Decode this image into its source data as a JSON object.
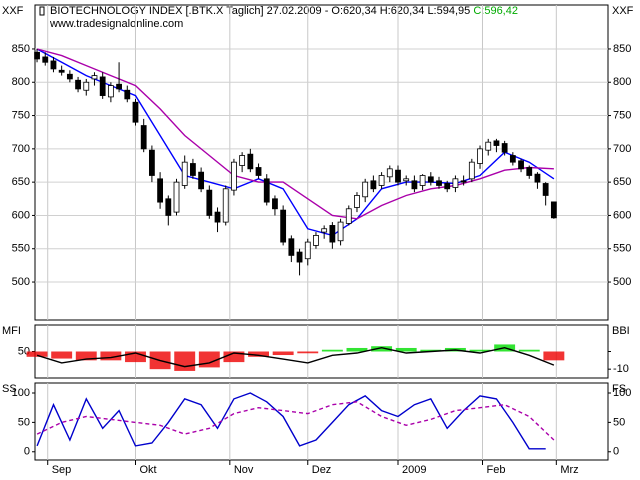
{
  "chart_data": [
    {
      "type": "candlestick",
      "title": "BIOTECHNOLOGY INDEX [.BTK.X  Taglich] 27.02.2009 - O:620,34 H:620,34 L:594,95",
      "close_label": "C:596,42",
      "subtitle": "www.tradesignalonline.com",
      "label_left": "XXF",
      "label_right": "XXF",
      "up_color": "#ffffff",
      "down_color": "#000000",
      "close_label_color": "#00aa00",
      "xlim": [
        -0.25,
        69.6
      ],
      "ylim": [
        443,
        916
      ],
      "yticks": [
        500,
        550,
        600,
        650,
        700,
        750,
        800,
        850
      ],
      "grid": true,
      "x": [
        0,
        1,
        2,
        3,
        4,
        5,
        6,
        7,
        8,
        9,
        10,
        11,
        12,
        13,
        14,
        15,
        16,
        17,
        18,
        19,
        20,
        21,
        22,
        23,
        24,
        25,
        26,
        27,
        28,
        29,
        30,
        31,
        32,
        33,
        34,
        35,
        36,
        37,
        38,
        39,
        40,
        41,
        42,
        43,
        44,
        45,
        46,
        47,
        48,
        49,
        50,
        51,
        52,
        53,
        54,
        55,
        56,
        57,
        58,
        59,
        60,
        61,
        62,
        63
      ],
      "open": [
        845,
        838,
        832,
        818,
        812,
        803,
        788,
        805,
        808,
        778,
        797,
        788,
        770,
        735,
        698,
        655,
        625,
        605,
        645,
        678,
        665,
        638,
        605,
        590,
        638,
        675,
        692,
        672,
        655,
        625,
        608,
        565,
        545,
        535,
        555,
        575,
        585,
        562,
        588,
        612,
        628,
        652,
        645,
        658,
        668,
        652,
        652,
        645,
        658,
        652,
        648,
        642,
        652,
        655,
        678,
        698,
        712,
        708,
        690,
        682,
        672,
        662,
        648,
        620.34
      ],
      "high": [
        850,
        845,
        838,
        825,
        818,
        808,
        805,
        815,
        815,
        800,
        830,
        795,
        775,
        745,
        705,
        665,
        630,
        655,
        690,
        685,
        672,
        645,
        612,
        645,
        685,
        695,
        700,
        678,
        662,
        630,
        615,
        570,
        550,
        565,
        575,
        585,
        590,
        595,
        615,
        635,
        655,
        660,
        665,
        675,
        675,
        660,
        660,
        662,
        665,
        658,
        652,
        660,
        660,
        685,
        705,
        715,
        715,
        712,
        695,
        685,
        675,
        665,
        650,
        620.34
      ],
      "low": [
        830,
        825,
        815,
        810,
        800,
        785,
        780,
        795,
        775,
        770,
        785,
        770,
        735,
        695,
        650,
        610,
        585,
        600,
        640,
        655,
        635,
        595,
        575,
        585,
        630,
        665,
        665,
        655,
        615,
        600,
        555,
        530,
        510,
        525,
        550,
        565,
        550,
        555,
        585,
        605,
        620,
        635,
        640,
        650,
        645,
        645,
        635,
        638,
        645,
        640,
        635,
        635,
        645,
        650,
        670,
        690,
        695,
        690,
        675,
        665,
        655,
        640,
        615,
        594.95
      ],
      "close": [
        835,
        830,
        820,
        815,
        805,
        790,
        800,
        810,
        780,
        795,
        790,
        775,
        740,
        700,
        660,
        620,
        600,
        650,
        680,
        660,
        640,
        600,
        590,
        640,
        680,
        690,
        670,
        660,
        620,
        610,
        560,
        540,
        530,
        560,
        570,
        580,
        560,
        590,
        610,
        630,
        650,
        640,
        660,
        670,
        650,
        655,
        640,
        660,
        650,
        645,
        640,
        655,
        650,
        680,
        700,
        710,
        705,
        695,
        680,
        670,
        660,
        650,
        630,
        596.42
      ],
      "series": [
        {
          "color": "#0000ff",
          "x": [
            0,
            3,
            6,
            9,
            12,
            15,
            18,
            21,
            24,
            27,
            30,
            33,
            36,
            39,
            42,
            45,
            48,
            51,
            54,
            57,
            60,
            63
          ],
          "values": [
            850,
            830,
            810,
            795,
            780,
            720,
            660,
            650,
            640,
            655,
            640,
            580,
            570,
            595,
            640,
            650,
            650,
            648,
            660,
            695,
            680,
            655
          ]
        },
        {
          "color": "#aa00aa",
          "x": [
            0,
            3,
            6,
            9,
            12,
            15,
            18,
            21,
            24,
            27,
            30,
            33,
            36,
            39,
            42,
            45,
            48,
            51,
            54,
            57,
            60,
            63
          ],
          "values": [
            850,
            840,
            825,
            810,
            795,
            760,
            720,
            690,
            660,
            650,
            650,
            625,
            600,
            595,
            615,
            630,
            640,
            645,
            655,
            668,
            672,
            670
          ]
        }
      ]
    },
    {
      "type": "bar",
      "label_left": "MFI",
      "label_right": "BBI",
      "xlim": [
        -0.25,
        69.6
      ],
      "ylim": [
        15,
        85
      ],
      "yticks": [
        50
      ],
      "y2lim": [
        -15,
        15
      ],
      "y2ticks": [
        -10
      ],
      "up_color": "#00dd00",
      "down_color": "#ee0000",
      "series": [
        {
          "type": "bar",
          "axis": "y2",
          "x": [
            0,
            3,
            6,
            9,
            12,
            15,
            18,
            21,
            24,
            27,
            30,
            33,
            36,
            39,
            42,
            45,
            48,
            51,
            54,
            57,
            60,
            63
          ],
          "values": [
            -3,
            -4,
            -5,
            -5,
            -6,
            -10,
            -11,
            -9,
            -6,
            -3,
            -2,
            -1,
            1,
            2,
            3,
            2,
            1,
            2,
            1,
            4,
            1,
            -5
          ]
        },
        {
          "type": "line",
          "color": "#000000",
          "x": [
            0,
            3,
            6,
            9,
            12,
            15,
            18,
            21,
            24,
            27,
            30,
            33,
            36,
            39,
            42,
            45,
            48,
            51,
            54,
            57,
            60,
            63
          ],
          "values": [
            45,
            35,
            40,
            42,
            48,
            38,
            30,
            35,
            48,
            45,
            40,
            35,
            45,
            48,
            55,
            48,
            50,
            52,
            48,
            55,
            45,
            32
          ]
        }
      ]
    },
    {
      "type": "line",
      "label_left": "SS",
      "label_right": "FS",
      "xlim": [
        -0.25,
        69.6
      ],
      "ylim": [
        -14,
        117
      ],
      "yticks": [
        0,
        50,
        100
      ],
      "xticks": [
        {
          "value": 1.3,
          "label": "Sep"
        },
        {
          "value": 12,
          "label": "Okt"
        },
        {
          "value": 23.5,
          "label": "Nov"
        },
        {
          "value": 33,
          "label": "Dez"
        },
        {
          "value": 44,
          "label": "2009"
        },
        {
          "value": 54.3,
          "label": "Feb"
        },
        {
          "value": 63.3,
          "label": "Mrz"
        }
      ],
      "series": [
        {
          "color": "#0000cc",
          "dashed": false,
          "x": [
            0,
            2,
            4,
            6,
            8,
            10,
            12,
            14,
            16,
            18,
            20,
            22,
            24,
            26,
            28,
            30,
            32,
            34,
            36,
            38,
            40,
            42,
            44,
            46,
            48,
            50,
            52,
            54,
            56,
            58,
            60,
            62
          ],
          "values": [
            10,
            80,
            20,
            90,
            40,
            70,
            10,
            15,
            50,
            90,
            80,
            40,
            90,
            100,
            85,
            60,
            10,
            20,
            50,
            80,
            95,
            70,
            60,
            80,
            90,
            40,
            70,
            95,
            90,
            50,
            5,
            5
          ]
        },
        {
          "color": "#aa00aa",
          "dashed": true,
          "x": [
            0,
            3,
            6,
            9,
            12,
            15,
            18,
            21,
            24,
            27,
            30,
            33,
            36,
            39,
            42,
            45,
            48,
            51,
            54,
            57,
            60,
            63
          ],
          "values": [
            30,
            50,
            60,
            55,
            50,
            45,
            30,
            40,
            65,
            75,
            70,
            65,
            80,
            85,
            60,
            45,
            55,
            70,
            75,
            80,
            60,
            20
          ]
        }
      ]
    }
  ]
}
